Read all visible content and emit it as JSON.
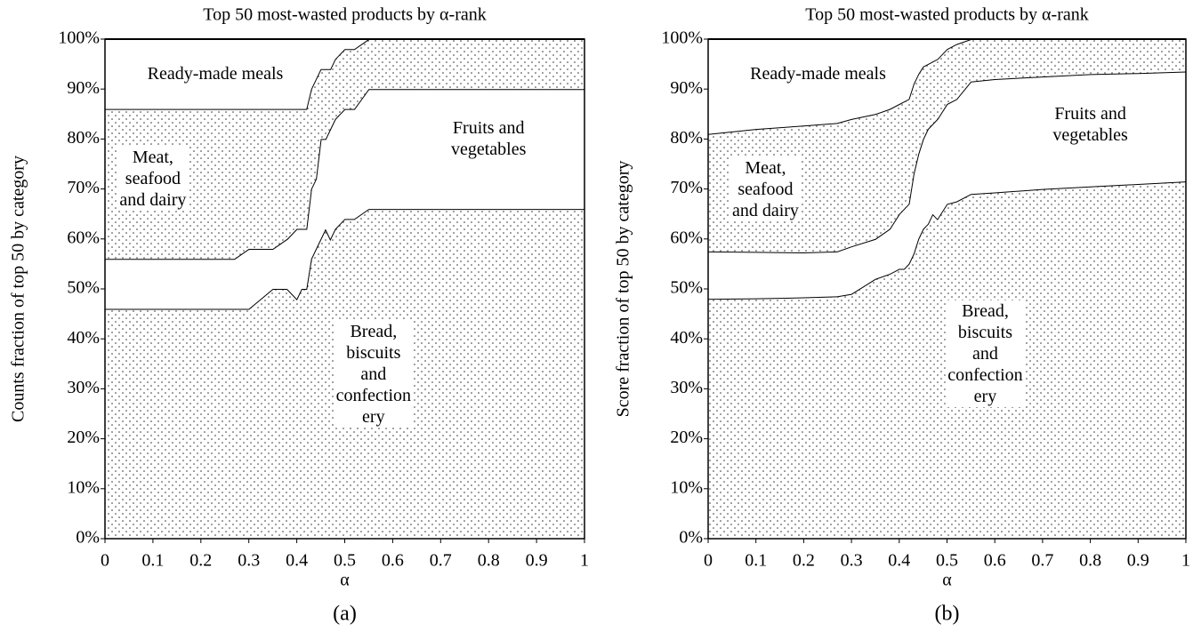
{
  "chart_data": [
    {
      "type": "stacked-area",
      "title": "Top 50 most-wasted products by α-rank",
      "xlabel": "α",
      "ylabel": "Counts fraction of top 50 by category",
      "caption": "(a)",
      "x": [
        0,
        0.1,
        0.2,
        0.27,
        0.3,
        0.35,
        0.38,
        0.4,
        0.41,
        0.42,
        0.43,
        0.44,
        0.45,
        0.46,
        0.47,
        0.48,
        0.5,
        0.52,
        0.55,
        0.6,
        0.7,
        0.8,
        0.9,
        1
      ],
      "series": [
        {
          "name": "Bread,\nbiscuits\nand\nconfection\nery",
          "pattern": "dots",
          "values": [
            46,
            46,
            46,
            46,
            46,
            50,
            50,
            48,
            50,
            50,
            56,
            58,
            60,
            62,
            60,
            62,
            64,
            64,
            66,
            66,
            66,
            66,
            66,
            66
          ]
        },
        {
          "name": "Fruits and\nvegetables",
          "pattern": "none",
          "values": [
            10,
            10,
            10,
            10,
            12,
            8,
            10,
            14,
            12,
            12,
            14,
            14,
            20,
            18,
            22,
            22,
            22,
            22,
            24,
            24,
            24,
            24,
            24,
            24
          ]
        },
        {
          "name": "Meat,\nseafood\nand dairy",
          "pattern": "dots",
          "values": [
            30,
            30,
            30,
            30,
            28,
            28,
            26,
            24,
            24,
            24,
            20,
            20,
            14,
            14,
            12,
            12,
            12,
            12,
            10,
            10,
            10,
            10,
            10,
            10
          ]
        },
        {
          "name": "Ready-made meals",
          "pattern": "none",
          "values": [
            14,
            14,
            14,
            14,
            14,
            14,
            14,
            14,
            14,
            14,
            10,
            8,
            6,
            6,
            6,
            4,
            2,
            2,
            0,
            0,
            0,
            0,
            0,
            0
          ]
        }
      ],
      "xlim": [
        0,
        1
      ],
      "xticks": [
        0,
        0.1,
        0.2,
        0.3,
        0.4,
        0.5,
        0.6,
        0.7,
        0.8,
        0.9,
        1
      ],
      "ylim": [
        0,
        100
      ],
      "yticks": [
        {
          "value": 0,
          "label": "0%"
        },
        {
          "value": 10,
          "label": "10%"
        },
        {
          "value": 20,
          "label": "20%"
        },
        {
          "value": 30,
          "label": "30%"
        },
        {
          "value": 40,
          "label": "40%"
        },
        {
          "value": 50,
          "label": "50%"
        },
        {
          "value": 60,
          "label": "60%"
        },
        {
          "value": 70,
          "label": "70%"
        },
        {
          "value": 80,
          "label": "80%"
        },
        {
          "value": 90,
          "label": "90%"
        },
        {
          "value": 100,
          "label": "100%"
        }
      ]
    },
    {
      "type": "stacked-area",
      "title": "Top 50 most-wasted products by α-rank",
      "xlabel": "α",
      "ylabel": "Score fraction of top 50 by category",
      "caption": "(b)",
      "x": [
        0,
        0.1,
        0.2,
        0.27,
        0.3,
        0.35,
        0.38,
        0.4,
        0.41,
        0.42,
        0.43,
        0.44,
        0.45,
        0.46,
        0.47,
        0.48,
        0.5,
        0.52,
        0.55,
        0.6,
        0.7,
        0.8,
        0.9,
        1
      ],
      "series": [
        {
          "name": "Bread,\nbiscuits\nand\nconfection\nery",
          "pattern": "dots",
          "values": [
            48,
            48.1,
            48.3,
            48.5,
            49,
            52,
            53,
            54,
            54,
            55,
            57,
            60,
            62,
            63,
            65,
            64,
            67,
            67.5,
            69,
            69.3,
            70,
            70.5,
            71,
            71.5
          ]
        },
        {
          "name": "Fruits and\nvegetables",
          "pattern": "none",
          "values": [
            9.5,
            9.3,
            9,
            9,
            9.5,
            8,
            9,
            11,
            12,
            12,
            16,
            17,
            18,
            19,
            18,
            20,
            20,
            20.5,
            22.5,
            22.7,
            22.5,
            22.5,
            22.2,
            22
          ]
        },
        {
          "name": "Meat,\nseafood\nand dairy",
          "pattern": "dots",
          "values": [
            23.5,
            24.6,
            25.4,
            25.7,
            25.5,
            25,
            24,
            22,
            21.5,
            21,
            18,
            16,
            14.5,
            13,
            12.5,
            12,
            11,
            11,
            8.5,
            8,
            7.5,
            7,
            6.8,
            6.5
          ]
        },
        {
          "name": "Ready-made meals",
          "pattern": "none",
          "values": [
            19,
            18,
            17.3,
            16.8,
            16,
            15,
            14,
            13,
            12.5,
            12,
            9,
            7,
            5.5,
            5,
            4.5,
            4,
            2,
            1,
            0,
            0,
            0,
            0,
            0,
            0
          ]
        }
      ],
      "xlim": [
        0,
        1
      ],
      "xticks": [
        0,
        0.1,
        0.2,
        0.3,
        0.4,
        0.5,
        0.6,
        0.7,
        0.8,
        0.9,
        1
      ],
      "ylim": [
        0,
        100
      ],
      "yticks": [
        {
          "value": 0,
          "label": "0%"
        },
        {
          "value": 10,
          "label": "10%"
        },
        {
          "value": 20,
          "label": "20%"
        },
        {
          "value": 30,
          "label": "30%"
        },
        {
          "value": 40,
          "label": "40%"
        },
        {
          "value": 50,
          "label": "50%"
        },
        {
          "value": 60,
          "label": "60%"
        },
        {
          "value": 70,
          "label": "70%"
        },
        {
          "value": 80,
          "label": "80%"
        },
        {
          "value": 90,
          "label": "90%"
        },
        {
          "value": 100,
          "label": "100%"
        }
      ]
    }
  ]
}
